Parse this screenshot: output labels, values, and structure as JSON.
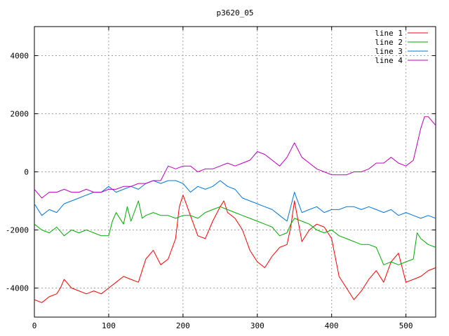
{
  "chart_data": {
    "type": "line",
    "title": "p3620_05",
    "xlabel": "",
    "ylabel": "",
    "xlim": [
      0,
      540
    ],
    "ylim": [
      -5000,
      5000
    ],
    "x_ticks": [
      0,
      100,
      200,
      300,
      400,
      500
    ],
    "y_ticks": [
      -4000,
      -2000,
      0,
      2000,
      4000
    ],
    "grid": true,
    "legend_position": "top-right",
    "series": [
      {
        "name": "line 1",
        "color": "#ff0000",
        "x": [
          0,
          10,
          20,
          30,
          35,
          40,
          50,
          60,
          70,
          80,
          90,
          100,
          110,
          120,
          130,
          140,
          150,
          160,
          170,
          180,
          190,
          195,
          200,
          210,
          220,
          230,
          240,
          250,
          255,
          260,
          270,
          280,
          290,
          300,
          310,
          320,
          330,
          340,
          345,
          350,
          355,
          360,
          370,
          380,
          390,
          400,
          410,
          420,
          430,
          440,
          450,
          460,
          470,
          480,
          490,
          500,
          510,
          520,
          530,
          540
        ],
        "values": [
          -4400,
          -4500,
          -4300,
          -4200,
          -4000,
          -3700,
          -4000,
          -4100,
          -4200,
          -4100,
          -4200,
          -4000,
          -3800,
          -3600,
          -3700,
          -3800,
          -3000,
          -2700,
          -3200,
          -3000,
          -2300,
          -1200,
          -800,
          -1500,
          -2200,
          -2300,
          -1700,
          -1200,
          -1000,
          -1400,
          -1600,
          -2000,
          -2700,
          -3100,
          -3300,
          -2900,
          -2600,
          -2500,
          -1900,
          -1000,
          -1700,
          -2400,
          -2000,
          -1800,
          -1900,
          -2300,
          -3600,
          -4000,
          -4400,
          -4100,
          -3700,
          -3400,
          -3800,
          -3100,
          -2800,
          -3800,
          -3700,
          -3600,
          -3400,
          -3300
        ]
      },
      {
        "name": "line 2",
        "color": "#00aa00",
        "x": [
          0,
          10,
          20,
          30,
          40,
          50,
          60,
          70,
          80,
          90,
          100,
          105,
          110,
          120,
          125,
          130,
          140,
          145,
          150,
          160,
          170,
          180,
          190,
          200,
          210,
          220,
          230,
          240,
          250,
          260,
          270,
          280,
          290,
          300,
          310,
          320,
          330,
          340,
          345,
          350,
          360,
          370,
          380,
          390,
          400,
          410,
          420,
          430,
          440,
          450,
          460,
          470,
          480,
          490,
          500,
          510,
          515,
          520,
          530,
          540
        ],
        "values": [
          -1800,
          -2000,
          -2100,
          -1900,
          -2200,
          -2000,
          -2100,
          -2000,
          -2100,
          -2200,
          -2200,
          -1700,
          -1400,
          -1800,
          -1200,
          -1700,
          -1000,
          -1600,
          -1500,
          -1400,
          -1500,
          -1500,
          -1600,
          -1500,
          -1500,
          -1600,
          -1400,
          -1300,
          -1200,
          -1300,
          -1400,
          -1500,
          -1600,
          -1700,
          -1800,
          -1900,
          -2200,
          -2100,
          -1800,
          -1600,
          -1700,
          -1800,
          -2000,
          -2100,
          -2000,
          -2200,
          -2300,
          -2400,
          -2500,
          -2500,
          -2600,
          -3200,
          -3100,
          -3200,
          -3100,
          -3000,
          -2100,
          -2300,
          -2500,
          -2600
        ]
      },
      {
        "name": "line 3",
        "color": "#0077dd",
        "x": [
          0,
          10,
          20,
          30,
          40,
          50,
          60,
          70,
          80,
          90,
          100,
          110,
          120,
          130,
          140,
          150,
          160,
          170,
          180,
          190,
          200,
          210,
          220,
          230,
          240,
          250,
          260,
          270,
          280,
          290,
          300,
          310,
          320,
          330,
          340,
          350,
          360,
          370,
          380,
          390,
          400,
          410,
          420,
          430,
          440,
          450,
          460,
          470,
          480,
          490,
          500,
          510,
          520,
          530,
          540
        ],
        "values": [
          -1100,
          -1500,
          -1300,
          -1400,
          -1100,
          -1000,
          -900,
          -800,
          -700,
          -700,
          -500,
          -700,
          -600,
          -500,
          -600,
          -400,
          -300,
          -400,
          -300,
          -300,
          -400,
          -700,
          -500,
          -600,
          -500,
          -300,
          -500,
          -600,
          -900,
          -1000,
          -1100,
          -1200,
          -1300,
          -1500,
          -1700,
          -700,
          -1400,
          -1300,
          -1200,
          -1400,
          -1300,
          -1300,
          -1200,
          -1200,
          -1300,
          -1200,
          -1300,
          -1400,
          -1300,
          -1500,
          -1400,
          -1500,
          -1600,
          -1500,
          -1600
        ]
      },
      {
        "name": "line 4",
        "color": "#bb00bb",
        "x": [
          0,
          10,
          20,
          30,
          40,
          50,
          60,
          70,
          80,
          90,
          100,
          110,
          120,
          130,
          140,
          150,
          160,
          170,
          180,
          190,
          200,
          210,
          220,
          230,
          240,
          250,
          260,
          270,
          280,
          290,
          300,
          310,
          320,
          330,
          340,
          350,
          360,
          370,
          380,
          390,
          400,
          410,
          420,
          430,
          440,
          450,
          460,
          470,
          480,
          490,
          500,
          510,
          520,
          525,
          530,
          540
        ],
        "values": [
          -600,
          -900,
          -700,
          -700,
          -600,
          -700,
          -700,
          -600,
          -700,
          -700,
          -600,
          -600,
          -500,
          -500,
          -400,
          -400,
          -300,
          -300,
          200,
          100,
          200,
          200,
          0,
          100,
          100,
          200,
          300,
          200,
          300,
          400,
          700,
          600,
          400,
          200,
          500,
          1000,
          500,
          300,
          100,
          0,
          -100,
          -100,
          -100,
          0,
          0,
          100,
          300,
          300,
          500,
          300,
          200,
          400,
          1500,
          1900,
          1900,
          1600
        ]
      }
    ]
  }
}
